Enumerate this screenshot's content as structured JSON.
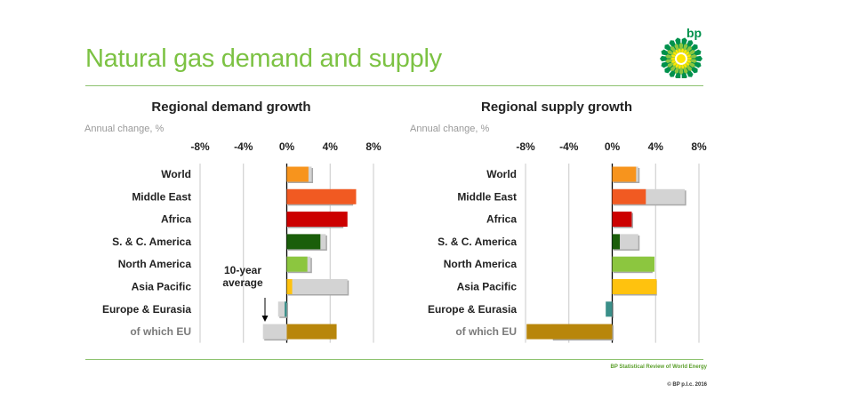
{
  "header": {
    "title": "Natural gas demand and supply",
    "logo_text": "bp"
  },
  "footer": {
    "source": "BP Statistical Review of World Energy",
    "copyright": "© BP p.l.c. 2016"
  },
  "chart_data": [
    {
      "type": "bar",
      "orientation": "horizontal",
      "title": "Regional demand growth",
      "subtitle": "Annual change, %",
      "xlim": [
        -8,
        8
      ],
      "tick_values": [
        -8,
        -4,
        0,
        4,
        8
      ],
      "tick_labels": [
        "-8%",
        "-4%",
        "0%",
        "4%",
        "8%"
      ],
      "categories": [
        "World",
        "Middle East",
        "Africa",
        "S. & C. America",
        "North America",
        "Asia Pacific",
        "Europe & Eurasia",
        "of which EU"
      ],
      "series": [
        {
          "values": [
            2.0,
            6.4,
            5.6,
            3.1,
            1.9,
            0.5,
            -0.2,
            4.6
          ],
          "colors": [
            "#f7941d",
            "#f15a22",
            "#cc0000",
            "#1a5e0a",
            "#8cc63f",
            "#ffc20e",
            "#3a8f89",
            "#b8860b"
          ]
        },
        {
          "values": [
            2.3,
            6.0,
            5.1,
            3.6,
            2.2,
            5.6,
            -0.8,
            -2.2
          ],
          "color": "#d3d3d3"
        }
      ],
      "annotation": {
        "text_lines": [
          "10-year",
          "average"
        ]
      }
    },
    {
      "type": "bar",
      "orientation": "horizontal",
      "title": "Regional supply growth",
      "subtitle": "Annual change, %",
      "xlim": [
        -8,
        8
      ],
      "tick_values": [
        -8,
        -4,
        0,
        4,
        8
      ],
      "tick_labels": [
        "-8%",
        "-4%",
        "0%",
        "4%",
        "8%"
      ],
      "categories": [
        "World",
        "Middle East",
        "Africa",
        "S. & C. America",
        "North America",
        "Asia Pacific",
        "Europe & Eurasia",
        "of which EU"
      ],
      "series": [
        {
          "values": [
            2.2,
            3.1,
            1.8,
            0.7,
            3.9,
            4.1,
            -0.6,
            -7.9
          ],
          "colors": [
            "#f7941d",
            "#f15a22",
            "#cc0000",
            "#1a5e0a",
            "#8cc63f",
            "#ffc20e",
            "#3a8f89",
            "#b8860b"
          ]
        },
        {
          "values": [
            2.4,
            6.7,
            1.8,
            2.4,
            3.6,
            4.0,
            -0.1,
            -5.6
          ],
          "color": "#d3d3d3"
        }
      ]
    }
  ]
}
